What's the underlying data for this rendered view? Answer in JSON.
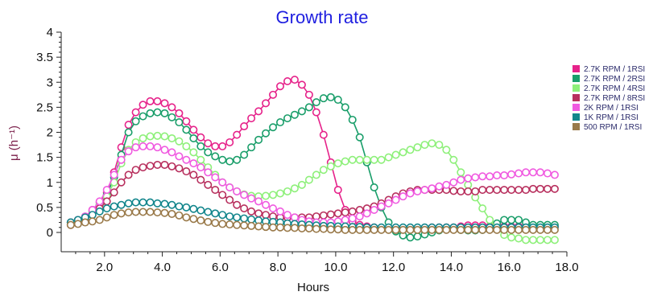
{
  "chart_data": {
    "type": "line",
    "title": "Growth rate",
    "xlabel": "Hours",
    "ylabel": "μ (h⁻¹)",
    "xlim": [
      0.5,
      18.0
    ],
    "ylim": [
      -0.25,
      4.0
    ],
    "x_ticks": [
      2.0,
      4.0,
      6.0,
      8.0,
      10.0,
      12.0,
      14.0,
      16.0,
      18.0
    ],
    "x_tick_labels": [
      "2.0",
      "4.0",
      "6.0",
      "8.0",
      "10.0",
      "12.0",
      "14.0",
      "16.0",
      "18.0"
    ],
    "y_ticks": [
      0,
      0.5,
      1,
      1.5,
      2,
      2.5,
      3,
      3.5,
      4
    ],
    "y_tick_labels": [
      "0",
      "0.5",
      "1",
      "1.5",
      "2",
      "2.5",
      "3",
      "3.5",
      "4"
    ],
    "grid": false,
    "legend_position": "right",
    "marker": "open-circle",
    "series": [
      {
        "name": "2.7K RPM / 1RSI",
        "color": "#e6228a",
        "x": [
          0.83,
          1.08,
          1.33,
          1.58,
          1.83,
          2.08,
          2.33,
          2.58,
          2.83,
          3.08,
          3.33,
          3.58,
          3.83,
          4.08,
          4.33,
          4.58,
          4.83,
          5.08,
          5.33,
          5.58,
          5.83,
          6.08,
          6.33,
          6.58,
          6.83,
          7.08,
          7.33,
          7.58,
          7.83,
          8.08,
          8.33,
          8.58,
          8.83,
          9.08,
          9.33,
          9.58,
          9.83,
          10.08,
          10.33,
          10.58,
          10.83,
          11.08,
          11.33,
          11.58,
          11.83,
          12.08,
          12.33,
          12.58,
          12.83,
          13.08,
          13.33,
          13.58,
          13.83,
          14.08,
          14.33,
          14.58,
          14.83,
          15.08,
          15.33,
          15.58,
          15.83,
          16.08,
          16.33,
          16.58,
          16.83,
          17.08,
          17.33,
          17.58
        ],
        "values": [
          0.2,
          0.25,
          0.3,
          0.45,
          0.6,
          0.8,
          1.2,
          1.7,
          2.15,
          2.4,
          2.55,
          2.62,
          2.62,
          2.58,
          2.5,
          2.38,
          2.22,
          2.05,
          1.9,
          1.78,
          1.72,
          1.72,
          1.8,
          1.95,
          2.12,
          2.28,
          2.42,
          2.58,
          2.75,
          2.92,
          3.02,
          3.05,
          2.95,
          2.75,
          2.4,
          1.95,
          1.4,
          0.85,
          0.45,
          0.22,
          0.15,
          0.12,
          0.1,
          0.08,
          0.07,
          0.07,
          0.07,
          0.08,
          0.08,
          0.08,
          0.1,
          0.1,
          0.1,
          0.1,
          0.12,
          0.14,
          0.14,
          0.14,
          0.12,
          0.12,
          0.12,
          0.12,
          0.12,
          0.12,
          0.12,
          0.12,
          0.12,
          0.12
        ]
      },
      {
        "name": "2.7K RPM / 2RSI",
        "color": "#1a9e6a",
        "x": [
          0.83,
          1.08,
          1.33,
          1.58,
          1.83,
          2.08,
          2.33,
          2.58,
          2.83,
          3.08,
          3.33,
          3.58,
          3.83,
          4.08,
          4.33,
          4.58,
          4.83,
          5.08,
          5.33,
          5.58,
          5.83,
          6.08,
          6.33,
          6.58,
          6.83,
          7.08,
          7.33,
          7.58,
          7.83,
          8.08,
          8.33,
          8.58,
          8.83,
          9.08,
          9.33,
          9.58,
          9.83,
          10.08,
          10.33,
          10.58,
          10.83,
          11.08,
          11.33,
          11.58,
          11.83,
          12.08,
          12.33,
          12.58,
          12.83,
          13.08,
          13.33,
          13.58,
          13.83,
          14.08,
          14.33,
          14.58,
          14.83,
          15.08,
          15.33,
          15.58,
          15.83,
          16.08,
          16.33,
          16.58,
          16.83,
          17.08,
          17.33,
          17.58
        ],
        "values": [
          0.2,
          0.25,
          0.3,
          0.42,
          0.55,
          0.75,
          1.1,
          1.55,
          2.0,
          2.22,
          2.32,
          2.38,
          2.4,
          2.38,
          2.3,
          2.2,
          2.05,
          1.88,
          1.72,
          1.6,
          1.52,
          1.45,
          1.42,
          1.45,
          1.55,
          1.7,
          1.85,
          1.98,
          2.1,
          2.2,
          2.28,
          2.35,
          2.42,
          2.5,
          2.6,
          2.68,
          2.7,
          2.65,
          2.5,
          2.25,
          1.9,
          1.4,
          0.9,
          0.5,
          0.2,
          0.02,
          -0.06,
          -0.1,
          -0.08,
          -0.04,
          0.0,
          0.04,
          0.06,
          0.06,
          0.05,
          0.04,
          0.04,
          0.05,
          0.1,
          0.18,
          0.25,
          0.25,
          0.25,
          0.2,
          0.15,
          0.15,
          0.15,
          0.15
        ]
      },
      {
        "name": "2.7K RPM / 4RSI",
        "color": "#8ef07a",
        "x": [
          0.83,
          1.08,
          1.33,
          1.58,
          1.83,
          2.08,
          2.33,
          2.58,
          2.83,
          3.08,
          3.33,
          3.58,
          3.83,
          4.08,
          4.33,
          4.58,
          4.83,
          5.08,
          5.33,
          5.58,
          5.83,
          6.08,
          6.33,
          6.58,
          6.83,
          7.08,
          7.33,
          7.58,
          7.83,
          8.08,
          8.33,
          8.58,
          8.83,
          9.08,
          9.33,
          9.58,
          9.83,
          10.08,
          10.33,
          10.58,
          10.83,
          11.08,
          11.33,
          11.58,
          11.83,
          12.08,
          12.33,
          12.58,
          12.83,
          13.08,
          13.33,
          13.58,
          13.83,
          14.08,
          14.33,
          14.58,
          14.83,
          15.08,
          15.33,
          15.58,
          15.83,
          16.08,
          16.33,
          16.58,
          16.83,
          17.08,
          17.33,
          17.58
        ],
        "values": [
          0.2,
          0.25,
          0.3,
          0.4,
          0.55,
          0.72,
          1.0,
          1.38,
          1.65,
          1.8,
          1.88,
          1.92,
          1.93,
          1.92,
          1.88,
          1.82,
          1.72,
          1.6,
          1.45,
          1.3,
          1.15,
          1.0,
          0.9,
          0.82,
          0.76,
          0.73,
          0.72,
          0.73,
          0.75,
          0.78,
          0.82,
          0.88,
          0.95,
          1.05,
          1.15,
          1.25,
          1.32,
          1.38,
          1.42,
          1.45,
          1.45,
          1.45,
          1.45,
          1.45,
          1.5,
          1.55,
          1.6,
          1.65,
          1.7,
          1.75,
          1.78,
          1.75,
          1.65,
          1.45,
          1.2,
          0.95,
          0.7,
          0.48,
          0.25,
          0.08,
          -0.05,
          -0.1,
          -0.12,
          -0.15,
          -0.15,
          -0.15,
          -0.15,
          -0.15
        ]
      },
      {
        "name": "2.7K RPM / 8RSI",
        "color": "#b8305e",
        "x": [
          0.83,
          1.08,
          1.33,
          1.58,
          1.83,
          2.08,
          2.33,
          2.58,
          2.83,
          3.08,
          3.33,
          3.58,
          3.83,
          4.08,
          4.33,
          4.58,
          4.83,
          5.08,
          5.33,
          5.58,
          5.83,
          6.08,
          6.33,
          6.58,
          6.83,
          7.08,
          7.33,
          7.58,
          7.83,
          8.08,
          8.33,
          8.58,
          8.83,
          9.08,
          9.33,
          9.58,
          9.83,
          10.08,
          10.33,
          10.58,
          10.83,
          11.08,
          11.33,
          11.58,
          11.83,
          12.08,
          12.33,
          12.58,
          12.83,
          13.08,
          13.33,
          13.58,
          13.83,
          14.08,
          14.33,
          14.58,
          14.83,
          15.08,
          15.33,
          15.58,
          15.83,
          16.08,
          16.33,
          16.58,
          16.83,
          17.08,
          17.33,
          17.58
        ],
        "values": [
          0.15,
          0.2,
          0.25,
          0.35,
          0.48,
          0.62,
          0.8,
          1.0,
          1.15,
          1.25,
          1.3,
          1.33,
          1.35,
          1.35,
          1.32,
          1.28,
          1.22,
          1.15,
          1.05,
          0.95,
          0.85,
          0.75,
          0.65,
          0.55,
          0.48,
          0.42,
          0.38,
          0.35,
          0.32,
          0.3,
          0.3,
          0.3,
          0.3,
          0.3,
          0.32,
          0.34,
          0.36,
          0.38,
          0.4,
          0.42,
          0.45,
          0.48,
          0.52,
          0.58,
          0.65,
          0.72,
          0.78,
          0.82,
          0.85,
          0.85,
          0.85,
          0.85,
          0.85,
          0.83,
          0.82,
          0.82,
          0.82,
          0.85,
          0.85,
          0.85,
          0.85,
          0.85,
          0.85,
          0.85,
          0.87,
          0.87,
          0.87,
          0.87
        ]
      },
      {
        "name": "2K RPM / 1RSI",
        "color": "#f05ae0",
        "x": [
          0.83,
          1.08,
          1.33,
          1.58,
          1.83,
          2.08,
          2.33,
          2.58,
          2.83,
          3.08,
          3.33,
          3.58,
          3.83,
          4.08,
          4.33,
          4.58,
          4.83,
          5.08,
          5.33,
          5.58,
          5.83,
          6.08,
          6.33,
          6.58,
          6.83,
          7.08,
          7.33,
          7.58,
          7.83,
          8.08,
          8.33,
          8.58,
          8.83,
          9.08,
          9.33,
          9.58,
          9.83,
          10.08,
          10.33,
          10.58,
          10.83,
          11.08,
          11.33,
          11.58,
          11.83,
          12.08,
          12.33,
          12.58,
          12.83,
          13.08,
          13.33,
          13.58,
          13.83,
          14.08,
          14.33,
          14.58,
          14.83,
          15.08,
          15.33,
          15.58,
          15.83,
          16.08,
          16.33,
          16.58,
          16.83,
          17.08,
          17.33,
          17.58
        ],
        "values": [
          0.2,
          0.25,
          0.32,
          0.45,
          0.62,
          0.85,
          1.15,
          1.45,
          1.62,
          1.7,
          1.72,
          1.72,
          1.7,
          1.65,
          1.6,
          1.52,
          1.45,
          1.38,
          1.3,
          1.2,
          1.1,
          1.0,
          0.9,
          0.82,
          0.75,
          0.68,
          0.62,
          0.55,
          0.48,
          0.42,
          0.35,
          0.3,
          0.25,
          0.22,
          0.2,
          0.2,
          0.2,
          0.22,
          0.25,
          0.28,
          0.32,
          0.38,
          0.45,
          0.52,
          0.58,
          0.65,
          0.72,
          0.78,
          0.82,
          0.85,
          0.88,
          0.92,
          0.95,
          1.0,
          1.05,
          1.08,
          1.1,
          1.12,
          1.12,
          1.14,
          1.14,
          1.16,
          1.18,
          1.2,
          1.2,
          1.2,
          1.18,
          1.15
        ]
      },
      {
        "name": "1K RPM / 1RSI",
        "color": "#13868c",
        "x": [
          0.83,
          1.08,
          1.33,
          1.58,
          1.83,
          2.08,
          2.33,
          2.58,
          2.83,
          3.08,
          3.33,
          3.58,
          3.83,
          4.08,
          4.33,
          4.58,
          4.83,
          5.08,
          5.33,
          5.58,
          5.83,
          6.08,
          6.33,
          6.58,
          6.83,
          7.08,
          7.33,
          7.58,
          7.83,
          8.08,
          8.33,
          8.58,
          8.83,
          9.08,
          9.33,
          9.58,
          9.83,
          10.08,
          10.33,
          10.58,
          10.83,
          11.08,
          11.33,
          11.58,
          11.83,
          12.08,
          12.33,
          12.58,
          12.83,
          13.08,
          13.33,
          13.58,
          13.83,
          14.08,
          14.33,
          14.58,
          14.83,
          15.08,
          15.33,
          15.58,
          15.83,
          16.08,
          16.33,
          16.58,
          16.83,
          17.08,
          17.33,
          17.58
        ],
        "values": [
          0.2,
          0.25,
          0.3,
          0.35,
          0.42,
          0.48,
          0.52,
          0.55,
          0.58,
          0.6,
          0.6,
          0.6,
          0.58,
          0.57,
          0.55,
          0.52,
          0.5,
          0.47,
          0.44,
          0.41,
          0.38,
          0.35,
          0.32,
          0.3,
          0.28,
          0.26,
          0.24,
          0.22,
          0.21,
          0.2,
          0.18,
          0.17,
          0.16,
          0.15,
          0.14,
          0.13,
          0.13,
          0.12,
          0.12,
          0.11,
          0.11,
          0.1,
          0.1,
          0.1,
          0.1,
          0.1,
          0.1,
          0.1,
          0.1,
          0.1,
          0.1,
          0.1,
          0.1,
          0.1,
          0.1,
          0.1,
          0.1,
          0.1,
          0.1,
          0.1,
          0.1,
          0.1,
          0.1,
          0.1,
          0.1,
          0.1,
          0.1,
          0.1
        ]
      },
      {
        "name": "500 RPM / 1RSI",
        "color": "#9a7a4a",
        "x": [
          0.83,
          1.08,
          1.33,
          1.58,
          1.83,
          2.08,
          2.33,
          2.58,
          2.83,
          3.08,
          3.33,
          3.58,
          3.83,
          4.08,
          4.33,
          4.58,
          4.83,
          5.08,
          5.33,
          5.58,
          5.83,
          6.08,
          6.33,
          6.58,
          6.83,
          7.08,
          7.33,
          7.58,
          7.83,
          8.08,
          8.33,
          8.58,
          8.83,
          9.08,
          9.33,
          9.58,
          9.83,
          10.08,
          10.33,
          10.58,
          10.83,
          11.08,
          11.33,
          11.58,
          11.83,
          12.08,
          12.33,
          12.58,
          12.83,
          13.08,
          13.33,
          13.58,
          13.83,
          14.08,
          14.33,
          14.58,
          14.83,
          15.08,
          15.33,
          15.58,
          15.83,
          16.08,
          16.33,
          16.58,
          16.83,
          17.08,
          17.33,
          17.58
        ],
        "values": [
          0.15,
          0.17,
          0.2,
          0.22,
          0.25,
          0.3,
          0.35,
          0.38,
          0.4,
          0.41,
          0.41,
          0.41,
          0.4,
          0.39,
          0.37,
          0.34,
          0.3,
          0.27,
          0.24,
          0.21,
          0.19,
          0.17,
          0.16,
          0.15,
          0.14,
          0.13,
          0.12,
          0.11,
          0.1,
          0.1,
          0.09,
          0.09,
          0.08,
          0.08,
          0.07,
          0.07,
          0.06,
          0.06,
          0.05,
          0.05,
          0.05,
          0.05,
          0.05,
          0.05,
          0.05,
          0.05,
          0.05,
          0.05,
          0.05,
          0.05,
          0.05,
          0.05,
          0.05,
          0.05,
          0.05,
          0.05,
          0.05,
          0.05,
          0.05,
          0.05,
          0.05,
          0.05,
          0.05,
          0.05,
          0.05,
          0.05,
          0.05,
          0.05
        ]
      }
    ]
  }
}
